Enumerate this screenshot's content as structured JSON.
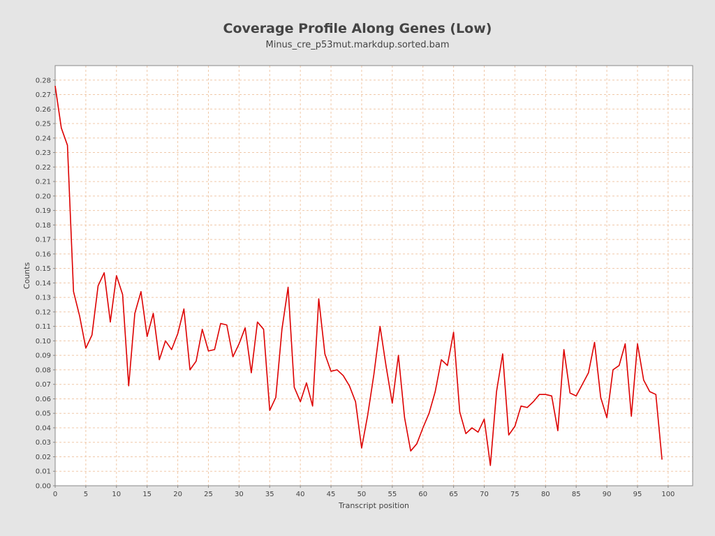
{
  "chart_data": {
    "type": "line",
    "title": "Coverage Profile Along Genes (Low)",
    "subtitle": "Minus_cre_p53mut.markdup.sorted.bam",
    "xlabel": "Transcript position",
    "ylabel": "Counts",
    "xlim": [
      0,
      104
    ],
    "ylim": [
      0,
      0.29
    ],
    "x_ticks": [
      "0",
      "5",
      "10",
      "15",
      "20",
      "25",
      "30",
      "35",
      "40",
      "45",
      "50",
      "55",
      "60",
      "65",
      "70",
      "75",
      "80",
      "85",
      "90",
      "95",
      "100"
    ],
    "y_ticks": [
      "0.00",
      "0.01",
      "0.02",
      "0.03",
      "0.04",
      "0.05",
      "0.06",
      "0.07",
      "0.08",
      "0.09",
      "0.10",
      "0.11",
      "0.12",
      "0.13",
      "0.14",
      "0.15",
      "0.16",
      "0.17",
      "0.18",
      "0.19",
      "0.20",
      "0.21",
      "0.22",
      "0.23",
      "0.24",
      "0.25",
      "0.26",
      "0.27",
      "0.28"
    ],
    "grid": true,
    "line_color": "#dd0000",
    "grid_color": "#f0c8a8",
    "series": [
      {
        "x": [
          0,
          1,
          2,
          3,
          4,
          5,
          6,
          7,
          8,
          9,
          10,
          11,
          12,
          13,
          14,
          15,
          16,
          17,
          18,
          19,
          20,
          21,
          22,
          23,
          24,
          25,
          26,
          27,
          28,
          29,
          30,
          31,
          32,
          33,
          34,
          35,
          36,
          37,
          38,
          39,
          40,
          41,
          42,
          43,
          44,
          45,
          46,
          47,
          48,
          49,
          50,
          51,
          52,
          53,
          54,
          55,
          56,
          57,
          58,
          59,
          60,
          61,
          62,
          63,
          64,
          65,
          66,
          67,
          68,
          69,
          70,
          71,
          72,
          73,
          74,
          75,
          76,
          77,
          78,
          79,
          80,
          81,
          82,
          83,
          84,
          85,
          86,
          87,
          88,
          89,
          90,
          91,
          92,
          93,
          94,
          95,
          96,
          97,
          98,
          99
        ],
        "y": [
          0.276,
          0.247,
          0.235,
          0.134,
          0.117,
          0.095,
          0.104,
          0.138,
          0.147,
          0.113,
          0.145,
          0.132,
          0.069,
          0.119,
          0.134,
          0.103,
          0.119,
          0.087,
          0.1,
          0.094,
          0.105,
          0.122,
          0.08,
          0.086,
          0.108,
          0.093,
          0.094,
          0.112,
          0.111,
          0.089,
          0.098,
          0.109,
          0.078,
          0.113,
          0.108,
          0.052,
          0.061,
          0.108,
          0.137,
          0.068,
          0.058,
          0.071,
          0.055,
          0.129,
          0.091,
          0.079,
          0.08,
          0.076,
          0.069,
          0.058,
          0.026,
          0.049,
          0.077,
          0.11,
          0.082,
          0.057,
          0.09,
          0.047,
          0.024,
          0.029,
          0.04,
          0.05,
          0.065,
          0.087,
          0.083,
          0.106,
          0.051,
          0.036,
          0.04,
          0.037,
          0.046,
          0.014,
          0.065,
          0.091,
          0.035,
          0.041,
          0.055,
          0.054,
          0.058,
          0.063,
          0.063,
          0.062,
          0.038,
          0.094,
          0.064,
          0.062,
          0.07,
          0.078,
          0.099,
          0.061,
          0.047,
          0.08,
          0.083,
          0.098,
          0.048,
          0.098,
          0.073,
          0.065,
          0.063,
          0.018
        ]
      }
    ]
  }
}
